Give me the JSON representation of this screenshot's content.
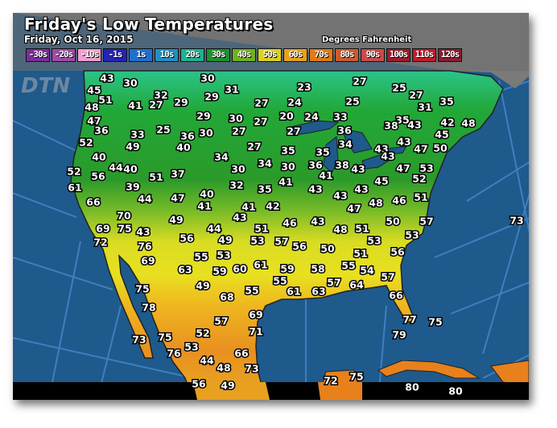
{
  "header": {
    "title": "Friday's Low Temperatures",
    "date": "Friday, Oct 16, 2015",
    "units": "Degrees Fahrenheit",
    "logo": "DTN"
  },
  "legend": [
    {
      "label": "-30s",
      "color": "#7b2d9a"
    },
    {
      "label": "-20s",
      "color": "#a04aa8"
    },
    {
      "label": "-10s",
      "color": "#f0a0d0"
    },
    {
      "label": "-1s",
      "color": "#2424b4"
    },
    {
      "label": "1s",
      "color": "#2070d0"
    },
    {
      "label": "10s",
      "color": "#2090c0"
    },
    {
      "label": "20s",
      "color": "#20b090"
    },
    {
      "label": "30s",
      "color": "#209030"
    },
    {
      "label": "40s",
      "color": "#70b020"
    },
    {
      "label": "50s",
      "color": "#dcd020"
    },
    {
      "label": "60s",
      "color": "#e8a020"
    },
    {
      "label": "70s",
      "color": "#e07a18"
    },
    {
      "label": "80s",
      "color": "#cc5a30"
    },
    {
      "label": "90s",
      "color": "#cc4a4a"
    },
    {
      "label": "100s",
      "color": "#9c1c2c"
    },
    {
      "label": "110s",
      "color": "#c01c2c"
    },
    {
      "label": "120s",
      "color": "#8c1c30"
    }
  ],
  "temperatures": [
    "43",
    "30",
    "30",
    "45",
    "32",
    "31",
    "51",
    "29",
    "48",
    "41",
    "27",
    "29",
    "27",
    "47",
    "29",
    "30",
    "27",
    "36",
    "33",
    "25",
    "36",
    "30",
    "27",
    "52",
    "49",
    "40",
    "27",
    "40",
    "34",
    "44",
    "40",
    "30",
    "34",
    "52",
    "51",
    "37",
    "56",
    "61",
    "39",
    "40",
    "32",
    "35",
    "44",
    "47",
    "41",
    "66",
    "70",
    "49",
    "41",
    "42",
    "43",
    "44",
    "69",
    "75",
    "43",
    "72",
    "76",
    "56",
    "49",
    "51",
    "53",
    "69",
    "55",
    "53",
    "63",
    "59",
    "60",
    "61",
    "75",
    "49",
    "55",
    "78",
    "68",
    "57",
    "69",
    "52",
    "73",
    "75",
    "53",
    "71",
    "76",
    "44",
    "48",
    "66",
    "73",
    "56",
    "49",
    "35",
    "35",
    "30",
    "36",
    "41",
    "38",
    "43",
    "41",
    "43",
    "43",
    "43",
    "47",
    "46",
    "43",
    "48",
    "51",
    "57",
    "56",
    "50",
    "51",
    "59",
    "58",
    "55",
    "54",
    "55",
    "57",
    "64",
    "61",
    "63",
    "27",
    "23",
    "25",
    "27",
    "24",
    "25",
    "31",
    "35",
    "20",
    "24",
    "33",
    "35",
    "38",
    "43",
    "42",
    "48",
    "27",
    "36",
    "45",
    "34",
    "43",
    "43",
    "47",
    "50",
    "43",
    "47",
    "53",
    "45",
    "52",
    "48",
    "46",
    "51",
    "50",
    "57",
    "53",
    "53",
    "56",
    "57",
    "66",
    "77",
    "75",
    "79",
    "72",
    "75",
    "80",
    "80",
    "73"
  ]
}
